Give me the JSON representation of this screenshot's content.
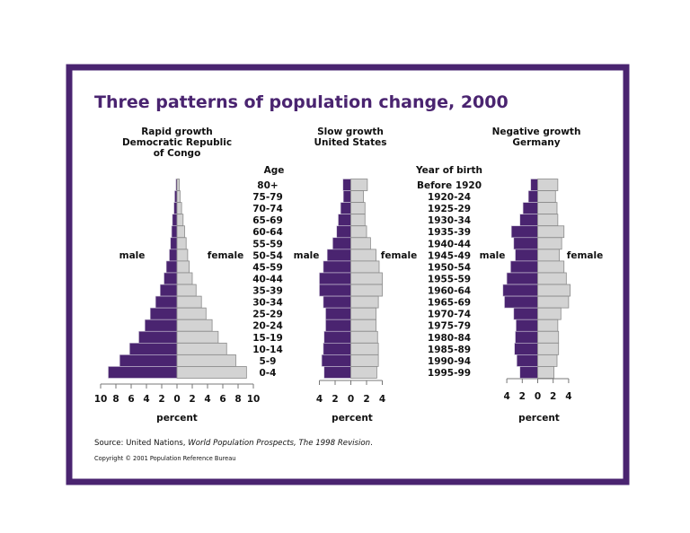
{
  "colors": {
    "frame": "#4a2470",
    "male": "#4a2470",
    "female": "#d3d3d3",
    "female_edge": "#8a8a8a",
    "title": "#4a2470"
  },
  "title": "Three patterns of population change, 2000",
  "source": {
    "prefix": "Source: United Nations, ",
    "italic": "World Population Prospects, The 1998 Revision",
    "suffix": "."
  },
  "copyright": "Copyright © 2001 Population Reference Bureau",
  "age_header": "Age",
  "age_groups": [
    "80+",
    "75-79",
    "70-74",
    "65-69",
    "60-64",
    "55-59",
    "50-54",
    "45-59",
    "40-44",
    "35-39",
    "30-34",
    "25-29",
    "20-24",
    "15-19",
    "10-14",
    "5-9",
    "0-4"
  ],
  "birth_header": "Year of birth",
  "birth_years": [
    "Before 1920",
    "1920-24",
    "1925-29",
    "1930-34",
    "1935-39",
    "1940-44",
    "1945-49",
    "1950-54",
    "1955-59",
    "1960-64",
    "1965-69",
    "1970-74",
    "1975-79",
    "1980-84",
    "1985-89",
    "1990-94",
    "1995-99"
  ],
  "chart_data": [
    {
      "type": "bar",
      "orientation": "horizontal-pyramid",
      "subtitle": [
        "Rapid growth",
        "Democratic Republic",
        "of Congo"
      ],
      "xlabel": "percent",
      "xlim": [
        -10,
        10
      ],
      "ticks": [
        "10",
        "8",
        "6",
        "4",
        "2",
        "0",
        "2",
        "4",
        "6",
        "8",
        "10"
      ],
      "categories_ref": "age_groups",
      "series": [
        {
          "name": "male",
          "values": [
            0.15,
            0.3,
            0.4,
            0.6,
            0.7,
            0.85,
            1.0,
            1.4,
            1.7,
            2.2,
            2.8,
            3.5,
            4.2,
            5.0,
            6.2,
            7.5,
            9.0
          ]
        },
        {
          "name": "female",
          "values": [
            0.3,
            0.4,
            0.6,
            0.8,
            1.0,
            1.2,
            1.4,
            1.6,
            2.0,
            2.5,
            3.2,
            3.8,
            4.6,
            5.4,
            6.5,
            7.7,
            9.1
          ]
        }
      ]
    },
    {
      "type": "bar",
      "orientation": "horizontal-pyramid",
      "subtitle": [
        "Slow growth",
        "United States"
      ],
      "xlabel": "percent",
      "xlim": [
        -4,
        4
      ],
      "ticks": [
        "4",
        "2",
        "0",
        "2",
        "4"
      ],
      "categories_ref": "age_groups",
      "series": [
        {
          "name": "male",
          "values": [
            1.0,
            0.95,
            1.3,
            1.6,
            1.8,
            2.3,
            3.0,
            3.5,
            4.0,
            4.0,
            3.5,
            3.2,
            3.2,
            3.4,
            3.5,
            3.7,
            3.4
          ]
        },
        {
          "name": "female",
          "values": [
            2.1,
            1.6,
            1.8,
            1.8,
            2.0,
            2.5,
            3.2,
            3.6,
            4.0,
            4.0,
            3.5,
            3.2,
            3.2,
            3.4,
            3.5,
            3.5,
            3.3
          ]
        }
      ]
    },
    {
      "type": "bar",
      "orientation": "horizontal-pyramid",
      "subtitle": [
        "Negative growth",
        "Germany"
      ],
      "xlabel": "percent",
      "xlim": [
        -4,
        4
      ],
      "ticks": [
        "4",
        "2",
        "0",
        "2",
        "4"
      ],
      "categories_ref": "birth_years",
      "series": [
        {
          "name": "male",
          "values": [
            0.9,
            1.2,
            1.9,
            2.3,
            3.4,
            3.1,
            2.9,
            3.5,
            4.0,
            4.5,
            4.3,
            3.1,
            2.8,
            2.9,
            3.0,
            2.7,
            2.3
          ]
        },
        {
          "name": "female",
          "values": [
            2.6,
            2.3,
            2.5,
            2.6,
            3.4,
            3.1,
            2.8,
            3.4,
            3.7,
            4.2,
            4.0,
            3.0,
            2.6,
            2.7,
            2.7,
            2.5,
            2.1
          ]
        }
      ]
    }
  ]
}
